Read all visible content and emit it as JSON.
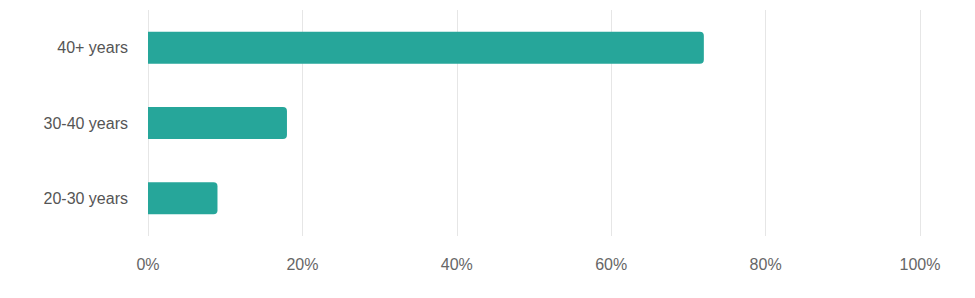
{
  "chart_data": {
    "type": "bar",
    "orientation": "horizontal",
    "categories": [
      "40+ years",
      "30-40 years",
      "20-30 years"
    ],
    "values": [
      72,
      18,
      9
    ],
    "color": "#26a69a",
    "xlim": [
      0,
      100
    ],
    "xticks": [
      {
        "value": 0,
        "label": "0%"
      },
      {
        "value": 20,
        "label": "20%"
      },
      {
        "value": 40,
        "label": "40%"
      },
      {
        "value": 60,
        "label": "60%"
      },
      {
        "value": 80,
        "label": "80%"
      },
      {
        "value": 100,
        "label": "100%"
      }
    ],
    "grid": true
  }
}
